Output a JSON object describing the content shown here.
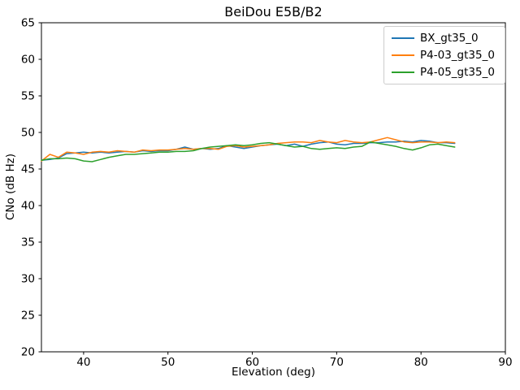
{
  "figure": {
    "title": "BeiDou E5B/B2",
    "xlabel": "Elevation (deg)",
    "ylabel": "CNo (dB Hz)"
  },
  "legend": {
    "position": "upper right",
    "entries": [
      {
        "label": "BX_gt35_0",
        "color": "#1f77b4"
      },
      {
        "label": "P4-03_gt35_0",
        "color": "#ff7f0e"
      },
      {
        "label": "P4-05_gt35_0",
        "color": "#2ca02c"
      }
    ]
  },
  "chart_data": {
    "type": "line",
    "title": "BeiDou E5B/B2",
    "xlabel": "Elevation (deg)",
    "ylabel": "CNo (dB Hz)",
    "xlim": [
      35,
      90
    ],
    "ylim": [
      20,
      65
    ],
    "xticks": [
      40,
      50,
      60,
      70,
      80,
      90
    ],
    "yticks": [
      20,
      25,
      30,
      35,
      40,
      45,
      50,
      55,
      60,
      65
    ],
    "grid": false,
    "legend_position": "upper right",
    "x": [
      35,
      36,
      37,
      38,
      39,
      40,
      41,
      42,
      43,
      44,
      45,
      46,
      47,
      48,
      49,
      50,
      51,
      52,
      53,
      54,
      55,
      56,
      57,
      58,
      59,
      60,
      61,
      62,
      63,
      64,
      65,
      66,
      67,
      68,
      69,
      70,
      71,
      72,
      73,
      74,
      75,
      76,
      77,
      78,
      79,
      80,
      81,
      82,
      83,
      84
    ],
    "series": [
      {
        "name": "BX_gt35_0",
        "color": "#1f77b4",
        "values": [
          46.2,
          46.3,
          46.5,
          47.1,
          47.2,
          47.3,
          47.2,
          47.3,
          47.2,
          47.3,
          47.4,
          47.3,
          47.5,
          47.4,
          47.5,
          47.5,
          47.7,
          48.0,
          47.7,
          47.8,
          47.7,
          47.8,
          48.2,
          48.0,
          47.8,
          48.0,
          48.2,
          48.3,
          48.4,
          48.2,
          48.4,
          48.1,
          48.4,
          48.6,
          48.7,
          48.4,
          48.3,
          48.5,
          48.5,
          48.6,
          48.6,
          48.7,
          48.7,
          48.8,
          48.7,
          48.9,
          48.8,
          48.6,
          48.6,
          48.5
        ]
      },
      {
        "name": "P4-03_gt35_0",
        "color": "#ff7f0e",
        "values": [
          46.1,
          47.0,
          46.6,
          47.3,
          47.2,
          47.0,
          47.3,
          47.4,
          47.3,
          47.5,
          47.4,
          47.3,
          47.6,
          47.5,
          47.6,
          47.6,
          47.7,
          47.8,
          47.7,
          47.8,
          47.8,
          47.7,
          48.1,
          48.2,
          48.0,
          48.1,
          48.2,
          48.3,
          48.5,
          48.6,
          48.7,
          48.7,
          48.6,
          48.9,
          48.7,
          48.6,
          48.9,
          48.7,
          48.6,
          48.7,
          49.0,
          49.3,
          49.0,
          48.7,
          48.6,
          48.7,
          48.7,
          48.6,
          48.7,
          48.6
        ]
      },
      {
        "name": "P4-05_gt35_0",
        "color": "#2ca02c",
        "values": [
          46.2,
          46.4,
          46.4,
          46.5,
          46.4,
          46.1,
          46.0,
          46.3,
          46.6,
          46.8,
          47.0,
          47.0,
          47.1,
          47.2,
          47.3,
          47.3,
          47.4,
          47.4,
          47.5,
          47.8,
          48.0,
          48.1,
          48.2,
          48.3,
          48.2,
          48.3,
          48.5,
          48.6,
          48.4,
          48.2,
          48.0,
          48.1,
          47.8,
          47.7,
          47.8,
          47.9,
          47.8,
          48.0,
          48.1,
          48.7,
          48.5,
          48.3,
          48.1,
          47.8,
          47.6,
          47.9,
          48.3,
          48.4,
          48.2,
          48.0
        ]
      }
    ]
  }
}
